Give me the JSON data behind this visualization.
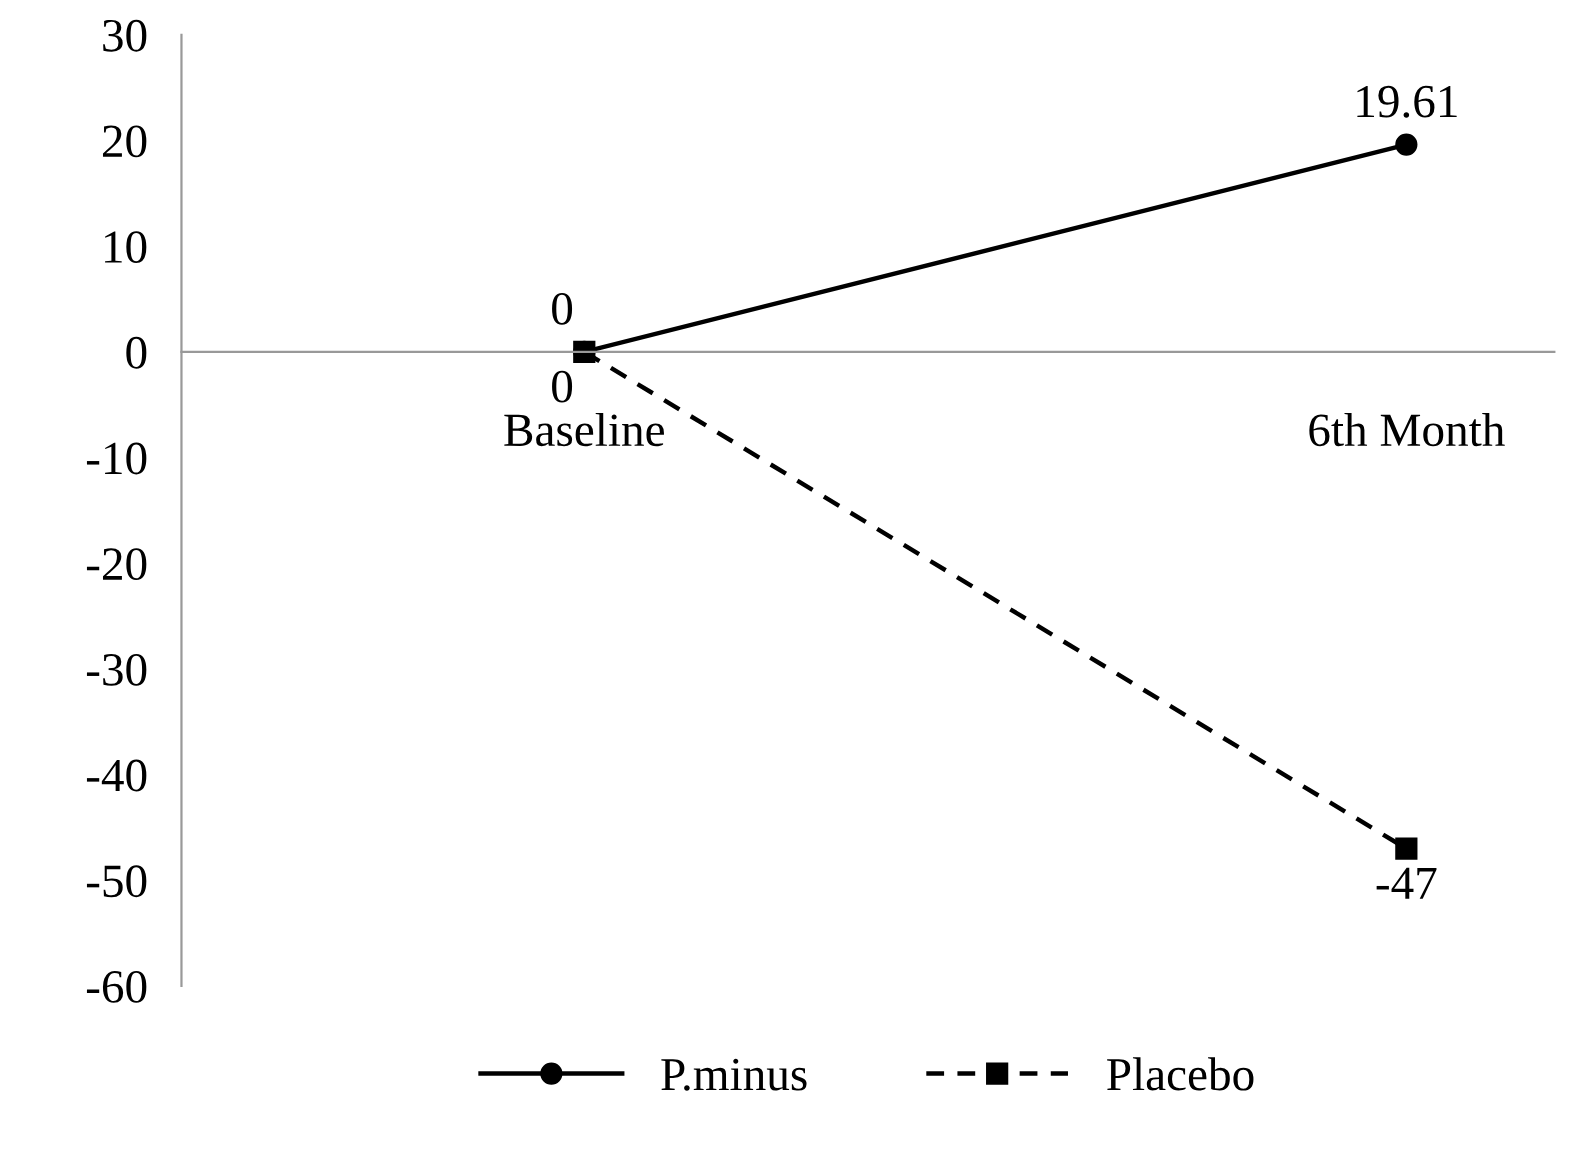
{
  "chart_data": {
    "type": "line",
    "categories": [
      "Baseline",
      "6th Month"
    ],
    "series": [
      {
        "name": "P.minus",
        "color": "#000000",
        "values": [
          0,
          19.61
        ],
        "marker": "circle",
        "line_style": "solid"
      },
      {
        "name": "Placebo",
        "color": "#000000",
        "values": [
          0,
          -47
        ],
        "marker": "square",
        "line_style": "dashed"
      }
    ],
    "ylim": [
      -60,
      30
    ],
    "yticks": [
      -60,
      -50,
      -40,
      -30,
      -20,
      -10,
      0,
      10,
      20,
      30
    ],
    "grid": false,
    "legend": "bottom",
    "data_labels": true
  }
}
